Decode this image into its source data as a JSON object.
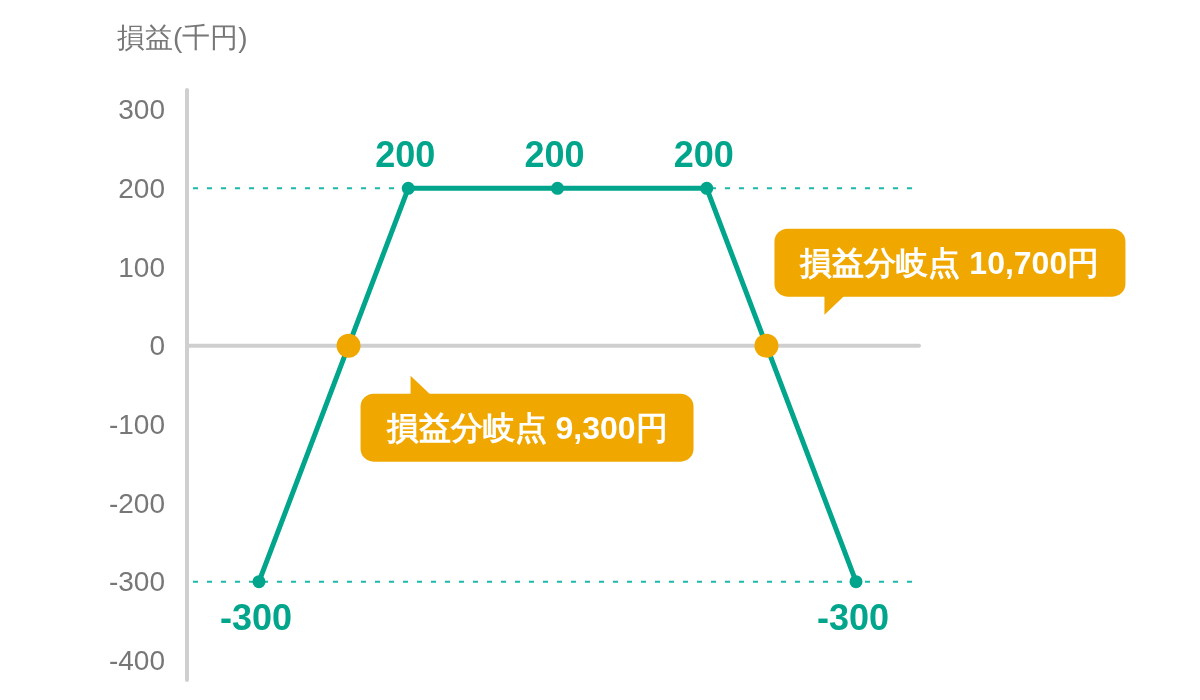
{
  "chart_data": {
    "type": "line",
    "ylabel": "損益(千円)",
    "categories": [
      null,
      null,
      null,
      null,
      null
    ],
    "series": [
      {
        "color": "#00a58b",
        "values": [
          -300,
          200,
          200,
          200,
          -300
        ]
      }
    ],
    "ylim": [
      -425,
      325
    ],
    "yticks": [
      -400,
      -300,
      -200,
      -100,
      0,
      100,
      200,
      300
    ],
    "tick_labels": "y",
    "marker": "circle",
    "data_labels": true,
    "ref_lines": [
      {
        "axis": "y",
        "value": 200,
        "color": "#1bb8ac",
        "line_style": "dashed"
      },
      {
        "axis": "y",
        "value": -300,
        "color": "#1bb8ac",
        "line_style": "dashed"
      }
    ],
    "annotations": [
      "損益分岐点 9,300円",
      "損益分岐点 10,700円"
    ]
  }
}
